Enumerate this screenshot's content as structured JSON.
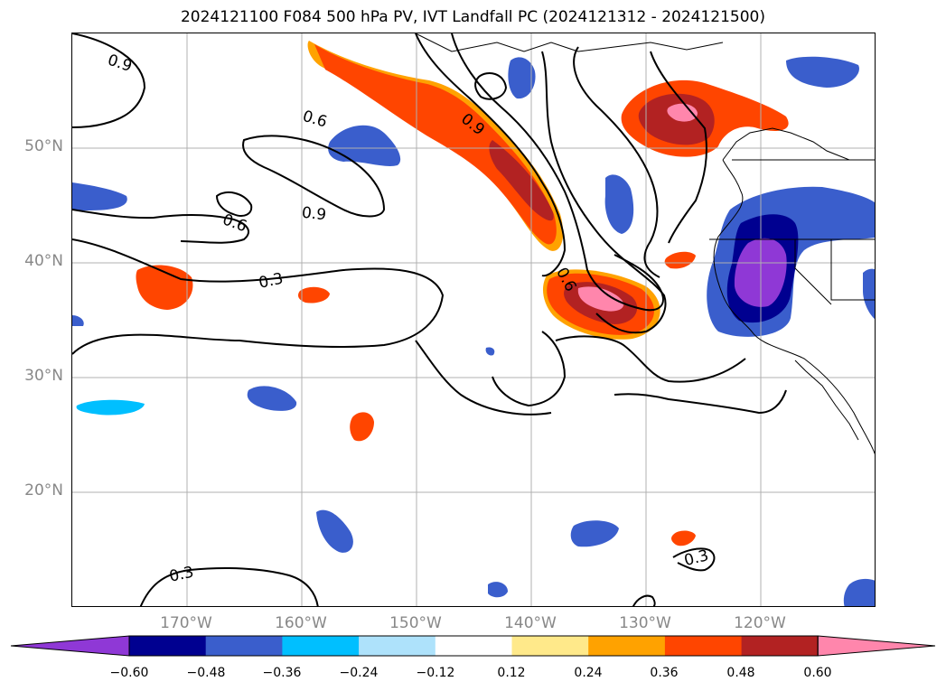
{
  "title": "2024121100 F084 500 hPa PV, IVT Landfall PC (2024121312 - 2024121500)",
  "lat_labels": [
    "50°N",
    "40°N",
    "30°N",
    "20°N"
  ],
  "lon_labels": [
    "170°W",
    "160°W",
    "150°W",
    "140°W",
    "130°W",
    "120°W"
  ],
  "map": {
    "lon_range": [
      -180,
      -110
    ],
    "lat_range": [
      10,
      60
    ],
    "gridlines": true,
    "grid_lons": [
      -170,
      -160,
      -150,
      -140,
      -130,
      -120
    ],
    "grid_lats": [
      20,
      30,
      40,
      50
    ],
    "contour_labels": [
      {
        "text": "0.9",
        "lon": -174,
        "lat": 57.5
      },
      {
        "text": "0.6",
        "lon": -158,
        "lat": 52.6
      },
      {
        "text": "0.9",
        "lon": -155,
        "lat": 44.7
      },
      {
        "text": "0.6",
        "lon": -166,
        "lat": 43.6
      },
      {
        "text": "0.3",
        "lon": -162,
        "lat": 38.5
      },
      {
        "text": "0.9",
        "lon": -144,
        "lat": 52.0
      },
      {
        "text": "0.6",
        "lon": -137,
        "lat": 38.7
      },
      {
        "text": "0.3",
        "lon": -125,
        "lat": 14.5
      },
      {
        "text": "0.3",
        "lon": -169,
        "lat": 13.0
      }
    ]
  },
  "colorbar": {
    "ticks": [
      "−0.60",
      "−0.48",
      "−0.36",
      "−0.24",
      "−0.12",
      "0.12",
      "0.24",
      "0.36",
      "0.48",
      "0.60"
    ],
    "colors": [
      "#8f38d6",
      "#000090",
      "#3a5ecc",
      "#00bfff",
      "#aee2fb",
      "#ffffff",
      "#ffe98a",
      "#ffa200",
      "#ff4500",
      "#b22222",
      "#ff86ac"
    ]
  }
}
